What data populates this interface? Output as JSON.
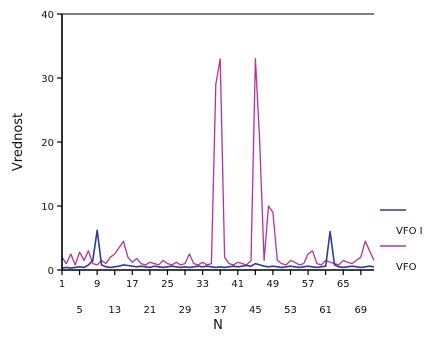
{
  "chart_data": {
    "type": "line",
    "xlabel": "N",
    "ylabel": "Vrednost",
    "ylim": [
      0,
      40
    ],
    "xlim": [
      1,
      72
    ],
    "yticks": [
      0,
      10,
      20,
      30,
      40
    ],
    "xticks_top": [
      1,
      9,
      17,
      25,
      33,
      41,
      49,
      57,
      65
    ],
    "xticks_bottom": [
      5,
      13,
      21,
      29,
      37,
      45,
      53,
      61,
      69
    ],
    "grid": false,
    "legend_position": "right",
    "x": [
      1,
      2,
      3,
      4,
      5,
      6,
      7,
      8,
      9,
      10,
      11,
      12,
      13,
      14,
      15,
      16,
      17,
      18,
      19,
      20,
      21,
      22,
      23,
      24,
      25,
      26,
      27,
      28,
      29,
      30,
      31,
      32,
      33,
      34,
      35,
      36,
      37,
      38,
      39,
      40,
      41,
      42,
      43,
      44,
      45,
      46,
      47,
      48,
      49,
      50,
      51,
      52,
      53,
      54,
      55,
      56,
      57,
      58,
      59,
      60,
      61,
      62,
      63,
      64,
      65,
      66,
      67,
      68,
      69,
      70,
      71,
      72
    ],
    "series": [
      {
        "name": "VFO I",
        "color": "#2b3c9c",
        "values": [
          0.3,
          0.4,
          0.3,
          0.4,
          0.5,
          0.4,
          0.8,
          1.5,
          6.2,
          0.8,
          0.5,
          0.4,
          0.5,
          0.6,
          0.8,
          0.7,
          0.6,
          0.5,
          0.6,
          0.5,
          0.4,
          0.6,
          0.5,
          0.4,
          0.5,
          0.6,
          0.5,
          0.4,
          0.5,
          0.4,
          0.5,
          0.6,
          0.5,
          0.6,
          0.5,
          0.4,
          0.5,
          0.4,
          0.5,
          0.6,
          0.5,
          0.6,
          0.7,
          0.6,
          1.0,
          0.8,
          0.6,
          0.5,
          0.6,
          0.5,
          0.4,
          0.5,
          0.6,
          0.5,
          0.4,
          0.5,
          0.6,
          0.5,
          0.4,
          0.5,
          0.6,
          6.0,
          0.8,
          0.5,
          0.4,
          0.5,
          0.6,
          0.5,
          0.4,
          0.5,
          0.6,
          0.5
        ]
      },
      {
        "name": "VFO",
        "color": "#b8309f",
        "values": [
          2.0,
          1.0,
          2.5,
          0.8,
          2.8,
          1.5,
          3.0,
          1.0,
          0.8,
          1.5,
          1.0,
          2.0,
          2.5,
          3.5,
          4.5,
          2.0,
          1.2,
          1.8,
          1.0,
          0.8,
          1.2,
          1.0,
          0.8,
          1.5,
          1.0,
          0.8,
          1.2,
          0.8,
          1.0,
          2.5,
          1.0,
          0.8,
          1.2,
          0.8,
          1.0,
          29.0,
          33.0,
          2.0,
          1.0,
          0.8,
          1.2,
          1.0,
          0.8,
          1.5,
          33.0,
          20.0,
          1.5,
          10.0,
          9.0,
          1.5,
          1.0,
          0.8,
          1.5,
          1.2,
          0.8,
          1.0,
          2.5,
          3.0,
          1.0,
          0.8,
          1.5,
          1.2,
          1.0,
          0.8,
          1.5,
          1.2,
          1.0,
          1.5,
          2.0,
          4.5,
          3.0,
          1.5
        ]
      }
    ]
  },
  "legend": [
    {
      "label": "VFO I",
      "color": "#2b3c9c"
    },
    {
      "label": "VFO",
      "color": "#b8309f"
    }
  ]
}
